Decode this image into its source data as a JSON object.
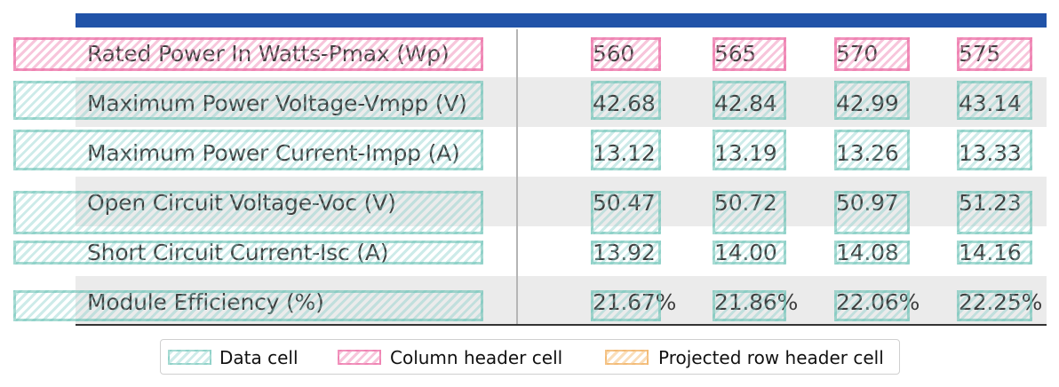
{
  "table": {
    "columns": [
      "560",
      "565",
      "570",
      "575"
    ],
    "rows": [
      {
        "label": "Maximum Power Voltage-Vmpp (V)",
        "values": [
          "42.68",
          "42.84",
          "42.99",
          "43.14"
        ]
      },
      {
        "label": "Maximum Power Current-Impp (A)",
        "values": [
          "13.12",
          "13.19",
          "13.26",
          "13.33"
        ]
      },
      {
        "label": "Open Circuit Voltage-Voc (V)",
        "values": [
          "50.47",
          "50.72",
          "50.97",
          "51.23"
        ]
      },
      {
        "label": "Short Circuit Current-Isc (A)",
        "values": [
          "13.92",
          "14.00",
          "14.08",
          "14.16"
        ]
      },
      {
        "label": "Module Efficiency (%)",
        "values": [
          "21.67%",
          "21.86%",
          "22.06%",
          "22.25%"
        ]
      }
    ],
    "header_label": "Rated Power In Watts-Pmax (Wp)"
  },
  "legend": {
    "data_cell": "Data cell",
    "column_header_cell": "Column header cell",
    "projected_row_header_cell": "Projected row header cell"
  },
  "colors": {
    "top_bar": "#2153a8",
    "data_cell": "#5fbeaf",
    "column_header_cell": "#ec6ea5",
    "projected_row_header_cell": "#f0af5f"
  }
}
